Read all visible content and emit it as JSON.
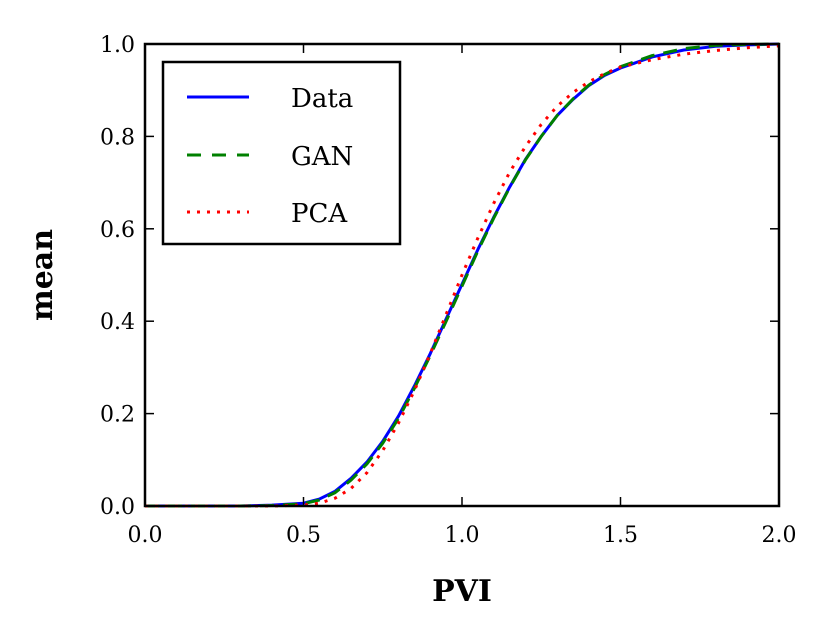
{
  "chart_data": {
    "type": "line",
    "title": "",
    "xlabel": "PVI",
    "ylabel": "mean",
    "xlim": [
      0.0,
      2.0
    ],
    "ylim": [
      0.0,
      1.0
    ],
    "x_ticks": [
      "0.0",
      "0.5",
      "1.0",
      "1.5",
      "2.0"
    ],
    "y_ticks": [
      "0.0",
      "0.2",
      "0.4",
      "0.6",
      "0.8",
      "1.0"
    ],
    "grid": false,
    "legend_position": "top-left",
    "series": [
      {
        "name": "Data",
        "color": "#0000ff",
        "style": "solid",
        "x": [
          0.0,
          0.3,
          0.4,
          0.5,
          0.55,
          0.6,
          0.65,
          0.7,
          0.75,
          0.8,
          0.85,
          0.9,
          0.95,
          1.0,
          1.05,
          1.1,
          1.15,
          1.2,
          1.25,
          1.3,
          1.35,
          1.4,
          1.45,
          1.5,
          1.6,
          1.7,
          1.8,
          1.9,
          2.0
        ],
        "y": [
          0.0,
          0.0,
          0.002,
          0.006,
          0.015,
          0.032,
          0.06,
          0.095,
          0.14,
          0.195,
          0.26,
          0.33,
          0.405,
          0.48,
          0.555,
          0.625,
          0.69,
          0.75,
          0.8,
          0.845,
          0.88,
          0.91,
          0.932,
          0.948,
          0.972,
          0.987,
          0.995,
          0.998,
          1.0
        ]
      },
      {
        "name": "GAN",
        "color": "#008000",
        "style": "dashed",
        "x": [
          0.0,
          0.3,
          0.4,
          0.5,
          0.55,
          0.6,
          0.65,
          0.7,
          0.75,
          0.8,
          0.85,
          0.9,
          0.95,
          1.0,
          1.05,
          1.1,
          1.15,
          1.2,
          1.25,
          1.3,
          1.35,
          1.4,
          1.45,
          1.5,
          1.6,
          1.7,
          1.8,
          1.9,
          2.0
        ],
        "y": [
          0.0,
          0.0,
          0.001,
          0.005,
          0.013,
          0.029,
          0.056,
          0.091,
          0.136,
          0.19,
          0.255,
          0.326,
          0.4,
          0.476,
          0.552,
          0.623,
          0.689,
          0.749,
          0.8,
          0.845,
          0.881,
          0.911,
          0.934,
          0.951,
          0.975,
          0.99,
          0.997,
          0.999,
          1.0
        ]
      },
      {
        "name": "PCA",
        "color": "#ff0000",
        "style": "dotted",
        "x": [
          0.0,
          0.3,
          0.4,
          0.5,
          0.55,
          0.6,
          0.65,
          0.7,
          0.75,
          0.8,
          0.85,
          0.9,
          0.95,
          1.0,
          1.05,
          1.1,
          1.15,
          1.2,
          1.25,
          1.3,
          1.35,
          1.4,
          1.45,
          1.5,
          1.6,
          1.7,
          1.8,
          1.9,
          2.0
        ],
        "y": [
          0.0,
          0.0,
          0.0,
          0.002,
          0.006,
          0.017,
          0.038,
          0.072,
          0.12,
          0.18,
          0.25,
          0.33,
          0.415,
          0.5,
          0.58,
          0.655,
          0.722,
          0.778,
          0.826,
          0.865,
          0.895,
          0.918,
          0.936,
          0.95,
          0.966,
          0.978,
          0.986,
          0.992,
          0.996
        ]
      }
    ]
  }
}
